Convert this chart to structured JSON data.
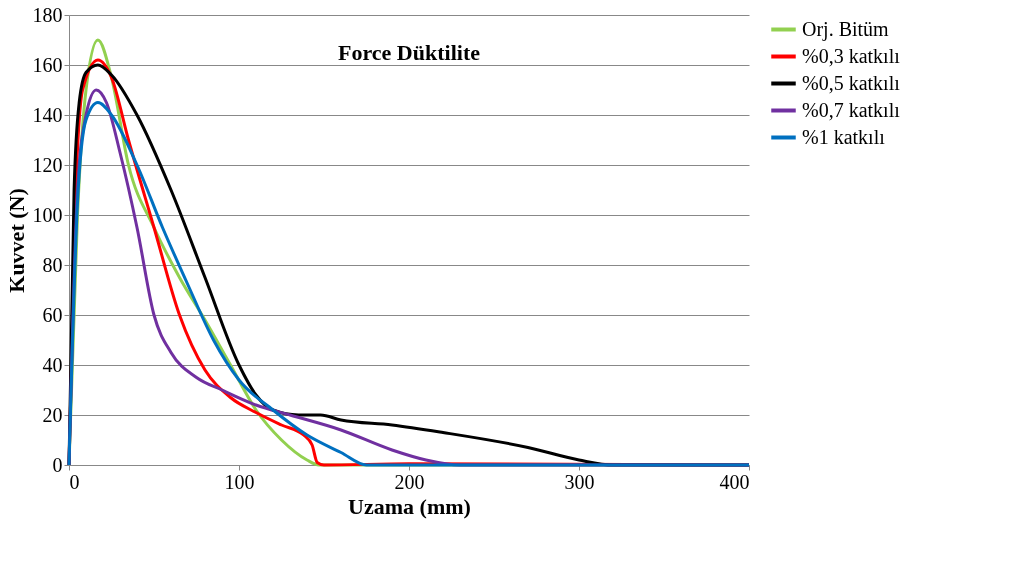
{
  "chart_data": {
    "type": "line",
    "title": "Force Düktilite",
    "xlabel": "Uzama (mm)",
    "ylabel": "Kuvvet (N)",
    "xlim": [
      0,
      400
    ],
    "xticks": [
      0,
      100,
      200,
      300,
      400
    ],
    "ylim": [
      0,
      180
    ],
    "yticks": [
      0,
      20,
      40,
      60,
      80,
      100,
      120,
      140,
      160,
      180
    ],
    "grid": "y",
    "legend": "right",
    "marker": "none",
    "line_style": "solid",
    "series": [
      {
        "name": "Orj. Bitüm",
        "color": "#92d050",
        "x": [
          0,
          5,
          10,
          17,
          25,
          35,
          50,
          65,
          80,
          95,
          110,
          125,
          140,
          147,
          400
        ],
        "values": [
          0,
          100,
          150,
          170,
          155,
          120,
          95,
          75,
          58,
          40,
          22,
          10,
          2,
          0,
          0
        ]
      },
      {
        "name": "%0,3 katkılı",
        "color": "#ff0000",
        "x": [
          0,
          4,
          8,
          17,
          25,
          35,
          50,
          65,
          80,
          95,
          110,
          125,
          138,
          143,
          146,
          150,
          200,
          400
        ],
        "values": [
          0,
          110,
          150,
          162,
          155,
          130,
          95,
          60,
          38,
          27,
          21,
          16,
          12,
          8,
          1,
          0,
          0.5,
          0
        ]
      },
      {
        "name": "%0,5 katkılı",
        "color": "#000000",
        "x": [
          0,
          3,
          6,
          10,
          17,
          25,
          40,
          60,
          80,
          100,
          110,
          120,
          135,
          148,
          160,
          190,
          220,
          270,
          300,
          320,
          400
        ],
        "values": [
          0,
          110,
          145,
          157,
          160,
          156,
          140,
          110,
          75,
          40,
          28,
          22,
          20,
          20,
          18,
          16,
          13,
          7,
          2,
          0,
          0
        ]
      },
      {
        "name": "%0,7 katkılı",
        "color": "#7030a0",
        "x": [
          0,
          5,
          10,
          16,
          22,
          30,
          40,
          50,
          60,
          75,
          90,
          110,
          130,
          160,
          190,
          210,
          230,
          400
        ],
        "values": [
          0,
          110,
          140,
          150,
          145,
          125,
          95,
          60,
          45,
          35,
          30,
          24,
          20,
          14,
          6,
          2,
          0,
          0
        ]
      },
      {
        "name": "%1 katkılı",
        "color": "#0070c0",
        "x": [
          0,
          5,
          10,
          17,
          25,
          40,
          55,
          70,
          85,
          100,
          120,
          140,
          160,
          175,
          400
        ],
        "values": [
          0,
          105,
          138,
          145,
          140,
          120,
          95,
          72,
          50,
          34,
          22,
          12,
          5,
          0,
          0
        ]
      }
    ]
  }
}
